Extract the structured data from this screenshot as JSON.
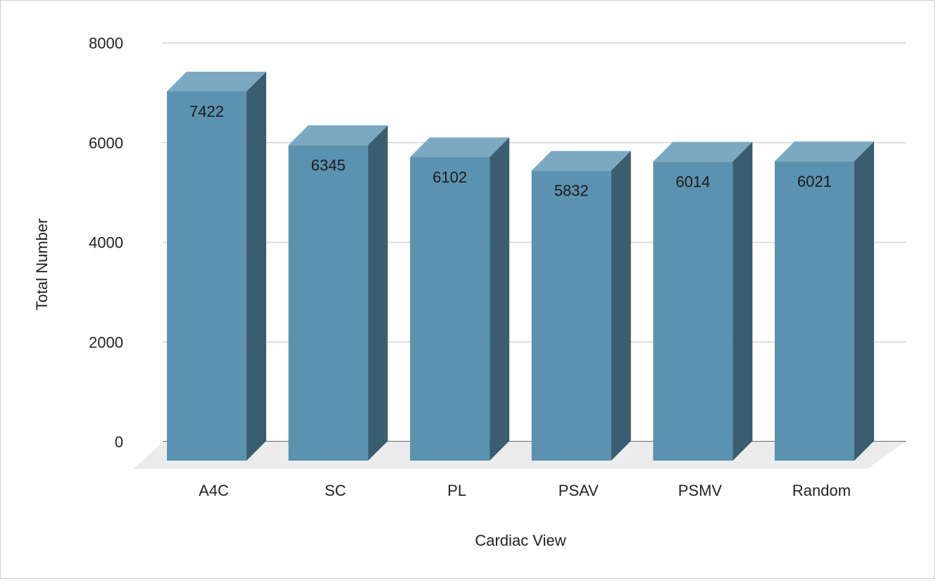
{
  "chart_data": {
    "type": "bar",
    "style": "3d-column",
    "categories": [
      "A4C",
      "SC",
      "PL",
      "PSAV",
      "PSMV",
      "Random"
    ],
    "values": [
      7422,
      6345,
      6102,
      5832,
      6014,
      6021
    ],
    "data_labels": [
      "7422",
      "6345",
      "6102",
      "5832",
      "6014",
      "6021"
    ],
    "title": "",
    "xlabel": "Cardiac View",
    "ylabel": "Total Number",
    "ylim": [
      0,
      8000
    ],
    "yticks": [
      0,
      2000,
      4000,
      6000,
      8000
    ],
    "grid": true,
    "legend": "none",
    "colors": {
      "front": "#5b92b0",
      "top": "#7ba9c2",
      "side": "#3a5e70",
      "floor": "#ececec",
      "grid": "#d3d3d3",
      "axis": "#333333"
    }
  }
}
